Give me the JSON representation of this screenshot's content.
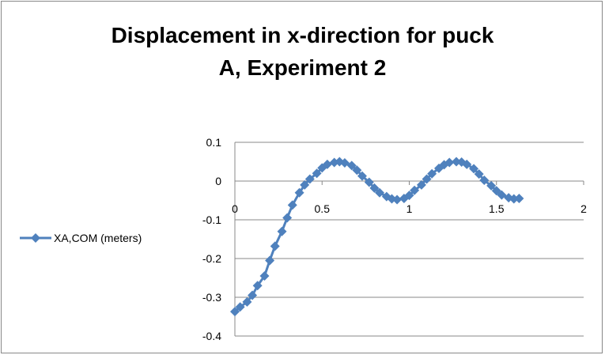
{
  "chart_data": {
    "type": "scatter",
    "title_line1": "Displacement in x-direction for puck",
    "title_line2": "A, Experiment 2",
    "xlabel": "",
    "ylabel": "",
    "xlim": [
      0,
      2
    ],
    "ylim": [
      -0.4,
      0.1
    ],
    "x_ticks": [
      0,
      0.5,
      1,
      1.5,
      2
    ],
    "x_tick_labels": [
      "0",
      "0.5",
      "1",
      "1.5",
      "2"
    ],
    "y_ticks": [
      0.1,
      0,
      -0.1,
      -0.2,
      -0.3,
      -0.4
    ],
    "y_tick_labels": [
      "0.1",
      "0",
      "-0.1",
      "-0.2",
      "-0.3",
      "-0.4"
    ],
    "grid": true,
    "legend_position": "left",
    "series": [
      {
        "name": "XA,COM (meters)",
        "color": "#4f81bd",
        "marker": "diamond",
        "x": [
          0.0,
          0.03,
          0.07,
          0.1,
          0.13,
          0.17,
          0.2,
          0.23,
          0.27,
          0.3,
          0.33,
          0.37,
          0.4,
          0.43,
          0.47,
          0.5,
          0.53,
          0.57,
          0.6,
          0.63,
          0.67,
          0.7,
          0.73,
          0.77,
          0.8,
          0.83,
          0.87,
          0.9,
          0.93,
          0.97,
          1.0,
          1.03,
          1.07,
          1.1,
          1.13,
          1.17,
          1.2,
          1.23,
          1.27,
          1.3,
          1.33,
          1.37,
          1.4,
          1.43,
          1.47,
          1.5,
          1.53,
          1.57,
          1.6,
          1.63
        ],
        "y": [
          -0.337,
          -0.325,
          -0.312,
          -0.295,
          -0.27,
          -0.245,
          -0.205,
          -0.168,
          -0.13,
          -0.095,
          -0.062,
          -0.03,
          -0.01,
          0.005,
          0.02,
          0.034,
          0.043,
          0.048,
          0.05,
          0.047,
          0.04,
          0.028,
          0.013,
          -0.003,
          -0.018,
          -0.03,
          -0.04,
          -0.046,
          -0.048,
          -0.045,
          -0.037,
          -0.024,
          -0.01,
          0.005,
          0.019,
          0.033,
          0.042,
          0.048,
          0.05,
          0.049,
          0.043,
          0.032,
          0.018,
          0.002,
          -0.012,
          -0.025,
          -0.036,
          -0.043,
          -0.046,
          -0.045
        ]
      }
    ]
  }
}
